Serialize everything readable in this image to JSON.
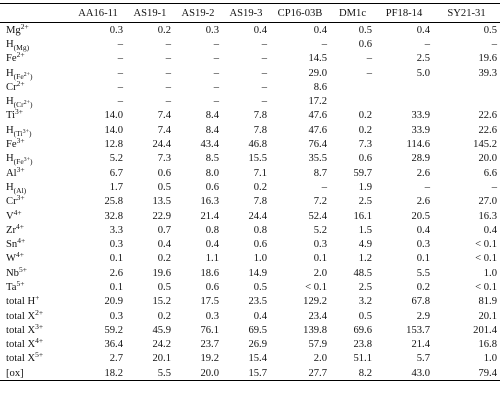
{
  "columns": [
    "",
    "AA16-11",
    "AS19-1",
    "AS19-2",
    "AS19-3",
    "CP16-03B",
    "DM1c",
    "PF18-14",
    "SY21-31"
  ],
  "rows": [
    {
      "label": {
        "base": "Mg",
        "sup": "2+",
        "sub": ""
      },
      "values": [
        "0.3",
        "0.2",
        "0.3",
        "0.4",
        "0.4",
        "0.5",
        "0.4",
        "0.5"
      ]
    },
    {
      "label": {
        "base": "H",
        "sup": "",
        "sub": "(Mg)"
      },
      "values": [
        "–",
        "–",
        "–",
        "–",
        "–",
        "0.6",
        "–",
        "–"
      ]
    },
    {
      "label": {
        "base": "Fe",
        "sup": "2+",
        "sub": ""
      },
      "values": [
        "–",
        "–",
        "–",
        "–",
        "14.5",
        "–",
        "2.5",
        "19.6"
      ]
    },
    {
      "label": {
        "base": "H",
        "sup": "",
        "sub": "(Fe2+)"
      },
      "values": [
        "–",
        "–",
        "–",
        "–",
        "29.0",
        "–",
        "5.0",
        "39.3"
      ]
    },
    {
      "label": {
        "base": "Cr",
        "sup": "2+",
        "sub": ""
      },
      "values": [
        "–",
        "–",
        "–",
        "–",
        "8.6",
        "",
        "",
        ""
      ]
    },
    {
      "label": {
        "base": "H",
        "sup": "",
        "sub": "(Cr2+)"
      },
      "values": [
        "–",
        "–",
        "–",
        "–",
        "17.2",
        "",
        "",
        ""
      ]
    },
    {
      "label": {
        "base": "Ti",
        "sup": "3+",
        "sub": ""
      },
      "values": [
        "14.0",
        "7.4",
        "8.4",
        "7.8",
        "47.6",
        "0.2",
        "33.9",
        "22.6"
      ]
    },
    {
      "label": {
        "base": "H",
        "sup": "",
        "sub": "(Ti3+)"
      },
      "values": [
        "14.0",
        "7.4",
        "8.4",
        "7.8",
        "47.6",
        "0.2",
        "33.9",
        "22.6"
      ]
    },
    {
      "label": {
        "base": "Fe",
        "sup": "3+",
        "sub": ""
      },
      "values": [
        "12.8",
        "24.4",
        "43.4",
        "46.8",
        "76.4",
        "7.3",
        "114.6",
        "145.2"
      ]
    },
    {
      "label": {
        "base": "H",
        "sup": "",
        "sub": "(Fe3+)"
      },
      "values": [
        "5.2",
        "7.3",
        "8.5",
        "15.5",
        "35.5",
        "0.6",
        "28.9",
        "20.0"
      ]
    },
    {
      "label": {
        "base": "Al",
        "sup": "3+",
        "sub": ""
      },
      "values": [
        "6.7",
        "0.6",
        "8.0",
        "7.1",
        "8.7",
        "59.7",
        "2.6",
        "6.6"
      ]
    },
    {
      "label": {
        "base": "H",
        "sup": "",
        "sub": "(Al)"
      },
      "values": [
        "1.7",
        "0.5",
        "0.6",
        "0.2",
        "–",
        "1.9",
        "–",
        "–"
      ]
    },
    {
      "label": {
        "base": "Cr",
        "sup": "3+",
        "sub": ""
      },
      "values": [
        "25.8",
        "13.5",
        "16.3",
        "7.8",
        "7.2",
        "2.5",
        "2.6",
        "27.0"
      ]
    },
    {
      "label": {
        "base": "V",
        "sup": "4+",
        "sub": ""
      },
      "values": [
        "32.8",
        "22.9",
        "21.4",
        "24.4",
        "52.4",
        "16.1",
        "20.5",
        "16.3"
      ]
    },
    {
      "label": {
        "base": "Zr",
        "sup": "4+",
        "sub": ""
      },
      "values": [
        "3.3",
        "0.7",
        "0.8",
        "0.8",
        "5.2",
        "1.5",
        "0.4",
        "0.4"
      ]
    },
    {
      "label": {
        "base": "Sn",
        "sup": "4+",
        "sub": ""
      },
      "values": [
        "0.3",
        "0.4",
        "0.4",
        "0.6",
        "0.3",
        "4.9",
        "0.3",
        "< 0.1"
      ]
    },
    {
      "label": {
        "base": "W",
        "sup": "4+",
        "sub": ""
      },
      "values": [
        "0.1",
        "0.2",
        "1.1",
        "1.0",
        "0.1",
        "1.2",
        "0.1",
        "< 0.1"
      ]
    },
    {
      "label": {
        "base": "Nb",
        "sup": "5+",
        "sub": ""
      },
      "values": [
        "2.6",
        "19.6",
        "18.6",
        "14.9",
        "2.0",
        "48.5",
        "5.5",
        "1.0"
      ]
    },
    {
      "label": {
        "base": "Ta",
        "sup": "5+",
        "sub": ""
      },
      "values": [
        "0.1",
        "0.5",
        "0.6",
        "0.5",
        "< 0.1",
        "2.5",
        "0.2",
        "< 0.1"
      ]
    },
    {
      "label": {
        "base": "total H",
        "sup": "+",
        "sub": ""
      },
      "values": [
        "20.9",
        "15.2",
        "17.5",
        "23.5",
        "129.2",
        "3.2",
        "67.8",
        "81.9"
      ]
    },
    {
      "label": {
        "base": "total X",
        "sup": "2+",
        "sub": ""
      },
      "values": [
        "0.3",
        "0.2",
        "0.3",
        "0.4",
        "23.4",
        "0.5",
        "2.9",
        "20.1"
      ]
    },
    {
      "label": {
        "base": "total X",
        "sup": "3+",
        "sub": ""
      },
      "values": [
        "59.2",
        "45.9",
        "76.1",
        "69.5",
        "139.8",
        "69.6",
        "153.7",
        "201.4"
      ]
    },
    {
      "label": {
        "base": "total X",
        "sup": "4+",
        "sub": ""
      },
      "values": [
        "36.4",
        "24.2",
        "23.7",
        "26.9",
        "57.9",
        "23.8",
        "21.4",
        "16.8"
      ]
    },
    {
      "label": {
        "base": "total X",
        "sup": "5+",
        "sub": ""
      },
      "values": [
        "2.7",
        "20.1",
        "19.2",
        "15.4",
        "2.0",
        "51.1",
        "5.7",
        "1.0"
      ]
    },
    {
      "label": {
        "base": "[ox]",
        "sup": "",
        "sub": ""
      },
      "values": [
        "18.2",
        "5.5",
        "20.0",
        "15.7",
        "27.7",
        "8.2",
        "43.0",
        "79.4"
      ]
    }
  ]
}
